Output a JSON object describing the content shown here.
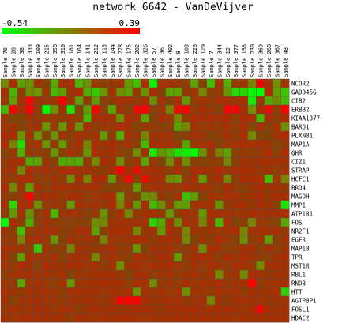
{
  "chart_data": {
    "type": "heatmap",
    "title": "network 6642 - VanDeVijver",
    "colorbar": {
      "min_label": "-0.54",
      "max_label": "0.39",
      "low_color": "#00ff00",
      "high_color": "#ff0000"
    },
    "columns": [
      "Sample 76",
      "Sample 28",
      "Sample 38",
      "Sample 333",
      "Sample 109",
      "Sample 215",
      "Sample 358",
      "Sample 310",
      "Sample 181",
      "Sample 164",
      "Sample 141",
      "Sample 212",
      "Sample 113",
      "Sample 144",
      "Sample 228",
      "Sample 175",
      "Sample 202",
      "Sample 326",
      "Sample 57",
      "Sample 36",
      "Sample 402",
      "Sample 8",
      "Sample 103",
      "Sample 226",
      "Sample 129",
      "Sample 7",
      "Sample 344",
      "Sample 12",
      "Sample 377",
      "Sample 158",
      "Sample 230",
      "Sample 369",
      "Sample 268",
      "Sample 367",
      "Sample 48"
    ],
    "rows": [
      "NCOR2",
      "GADD45G",
      "CIB2",
      "ERBB2",
      "KIAA1377",
      "BARD1",
      "PLXNB1",
      "MAP1A",
      "GHR",
      "CIZ1",
      "STRAP",
      "HCFC1",
      "BRD4",
      "MAGOH",
      "MMP1",
      "ATP1B1",
      "FOS",
      "NR2F1",
      "EGFR",
      "MAP1B",
      "TPR",
      "MST1R",
      "RBL1",
      "RND3",
      "HTT",
      "AGTPBP1",
      "FOSL1",
      "HDAC2"
    ],
    "values": [
      [
        -0.03,
        0.13,
        -0.13,
        -0.07,
        0.12,
        0.03,
        -0.17,
        0.11,
        0.14,
        -0.23,
        -0.08,
        0.08,
        0.04,
        0.07,
        0.11,
        -0.11,
        -0.25,
        0.13,
        -0.49,
        0.09,
        0.11,
        0.08,
        0.05,
        -0.14,
        0.04,
        -0.28,
        0.14,
        -0.21,
        0.06,
        0.1,
        -0.02,
        0.36,
        0.11,
        -0.06,
        0.09
      ],
      [
        0.12,
        -0.22,
        0.05,
        -0.05,
        -0.08,
        0.09,
        -0.23,
        -0.11,
        0.1,
        0.15,
        -0.18,
        -0.29,
        -0.09,
        0.11,
        -0.06,
        -0.13,
        0.08,
        -0.08,
        0.14,
        0.03,
        -0.14,
        -0.13,
        0.06,
        0.11,
        -0.02,
        0.05,
        0.08,
        -0.08,
        -0.38,
        -0.36,
        -0.5,
        -0.54,
        0.16,
        -0.12,
        -0.29
      ],
      [
        0.07,
        -0.12,
        0.1,
        0.33,
        0.1,
        0.09,
        0.1,
        0.36,
        0.1,
        -0.12,
        0.04,
        -0.11,
        0.05,
        0.07,
        0.13,
        0.12,
        0.06,
        0.12,
        -0.05,
        0.11,
        0.03,
        0.13,
        -0.11,
        0.08,
        0.11,
        0.08,
        0.13,
        0.13,
        0.09,
        0.14,
        -0.47,
        0.08,
        -0.17,
        -0.04,
        -0.25
      ],
      [
        -0.23,
        0.35,
        0.12,
        0.36,
        0.08,
        -0.52,
        -0.07,
        0.11,
        -0.42,
        0.03,
        -0.13,
        0.35,
        0.06,
        -0.17,
        0.11,
        0.03,
        0.33,
        0.39,
        0.05,
        0.09,
        -0.02,
        0.32,
        0.35,
        0.06,
        0.14,
        0.09,
        0.02,
        0.34,
        0.36,
        0.13,
        -0.07,
        0.14,
        0.31,
        0.05,
        0.38
      ],
      [
        0.09,
        0.0,
        0.02,
        0.11,
        0.07,
        0.08,
        0.08,
        0.06,
        0.11,
        0.06,
        -0.23,
        0.13,
        0.13,
        0.12,
        -0.05,
        0.15,
        0.1,
        -0.14,
        0.02,
        0.14,
        0.09,
        -0.02,
        0.04,
        0.15,
        0.12,
        0.14,
        0.12,
        0.15,
        0.04,
        0.14,
        0.13,
        -0.23,
        0.12,
        0.05,
        0.14
      ],
      [
        0.08,
        0.11,
        0.01,
        0.08,
        0.12,
        -0.09,
        0.08,
        -0.09,
        0.11,
        -0.09,
        0.13,
        0.03,
        0.09,
        0.08,
        0.14,
        0.12,
        0.01,
        0.07,
        0.08,
        0.03,
        0.04,
        -0.15,
        -0.03,
        0.12,
        0.08,
        0.1,
        0.06,
        0.12,
        0.06,
        0.13,
        0.0,
        0.12,
        0.02,
        0.12,
        -0.06
      ],
      [
        0.14,
        0.13,
        -0.08,
        0.11,
        -0.08,
        0.03,
        -0.07,
        0.1,
        0.04,
        0.13,
        0.1,
        0.11,
        -0.11,
        0.08,
        -0.21,
        0.14,
        0.07,
        -0.02,
        0.1,
        0.12,
        0.09,
        0.01,
        0.05,
        0.12,
        0.1,
        0.02,
        0.06,
        0.13,
        0.06,
        0.13,
        -0.04,
        0.01,
        0.02,
        0.12,
        0.15
      ],
      [
        0.14,
        -0.01,
        -0.4,
        0.09,
        0.13,
        -0.07,
        0.06,
        -0.11,
        0.06,
        0.13,
        -0.01,
        0.13,
        0.1,
        0.15,
        0.06,
        0.13,
        0.03,
        -0.24,
        0.13,
        0.12,
        0.12,
        0.06,
        -0.16,
        0.09,
        0.12,
        0.14,
        0.02,
        0.09,
        0.13,
        0.14,
        0.11,
        0.13,
        0.1,
        0.02,
        0.07
      ],
      [
        0.03,
        0.08,
        -0.21,
        0.07,
        0.06,
        0.03,
        -0.09,
        0.05,
        0.13,
        0.07,
        -0.09,
        0.14,
        0.1,
        0.13,
        0.06,
        0.02,
        -0.05,
        0.11,
        -0.47,
        -0.09,
        -0.19,
        -0.41,
        -0.46,
        -0.53,
        -0.07,
        0.07,
        -0.01,
        -0.14,
        0.03,
        0.07,
        0.06,
        0.08,
        0.15,
        0.02,
        0.14
      ],
      [
        0.06,
        0.13,
        0.13,
        -0.18,
        -0.14,
        0.1,
        0.04,
        -0.19,
        -0.15,
        -0.2,
        0.06,
        -0.03,
        0.14,
        0.11,
        -0.07,
        0.05,
        0.1,
        -0.14,
        0.09,
        0.01,
        -0.06,
        0.1,
        -0.06,
        0.05,
        0.03,
        0.06,
        0.04,
        -0.02,
        0.03,
        0.11,
        0.1,
        0.13,
        0.13,
        0.11,
        0.12
      ],
      [
        0.1,
        0.12,
        -0.04,
        0.13,
        0.09,
        0.13,
        0.06,
        0.13,
        0.15,
        0.1,
        0.11,
        0.07,
        0.05,
        0.13,
        0.36,
        0.13,
        0.3,
        0.11,
        0.13,
        0.1,
        0.04,
        0.14,
        0.01,
        0.14,
        0.12,
        0.1,
        0.15,
        0.09,
        0.11,
        0.14,
        0.12,
        0.07,
        0.1,
        0.05,
        0.12
      ],
      [
        0.08,
        0.06,
        0.14,
        0.14,
        0.04,
        0.06,
        0.11,
        0.06,
        -0.04,
        0.13,
        -0.03,
        0.13,
        0.14,
        -0.11,
        0.1,
        0.33,
        0.03,
        0.32,
        0.12,
        0.13,
        -0.03,
        -0.1,
        0.06,
        0.13,
        -0.13,
        0.07,
        0.14,
        -0.04,
        0.05,
        0.14,
        0.12,
        0.15,
        -0.26,
        0.09,
        -0.01
      ],
      [
        0.14,
        -0.03,
        0.11,
        -0.11,
        0.14,
        0.05,
        0.12,
        0.13,
        0.12,
        0.1,
        0.12,
        0.13,
        0.04,
        0.03,
        0.04,
        0.06,
        -0.11,
        0.06,
        0.13,
        0.11,
        0.1,
        0.08,
        0.15,
        0.1,
        0.13,
        0.1,
        0.04,
        0.14,
        0.08,
        0.04,
        0.1,
        0.15,
        0.1,
        0.12,
        0.07
      ],
      [
        0.07,
        0.02,
        0.1,
        0.35,
        0.09,
        0.14,
        0.12,
        0.08,
        0.13,
        0.13,
        0.06,
        0.09,
        0.12,
        0.15,
        -0.11,
        0.06,
        0.02,
        -0.08,
        -0.04,
        0.07,
        0.03,
        0.12,
        -0.27,
        -0.12,
        0.03,
        0.11,
        0.09,
        0.14,
        0.13,
        0.07,
        0.11,
        0.15,
        0.07,
        0.14,
        0.11
      ],
      [
        0.13,
        -0.38,
        0.14,
        0.15,
        -0.06,
        0.06,
        0.09,
        0.07,
        -0.12,
        0.13,
        0.09,
        0.13,
        0.06,
        0.15,
        -0.02,
        0.11,
        -0.1,
        0.12,
        -0.25,
        -0.06,
        0.08,
        -0.1,
        -0.13,
        0.11,
        0.13,
        0.11,
        -0.08,
        0.06,
        0.12,
        0.13,
        0.07,
        0.13,
        0.11,
        0.02,
        -0.43
      ],
      [
        0.06,
        -0.1,
        0.13,
        -0.07,
        0.03,
        0.12,
        -0.23,
        0.08,
        0.12,
        0.11,
        0.04,
        0.08,
        -0.07,
        0.06,
        0.13,
        -0.02,
        0.07,
        0.11,
        0.11,
        0.06,
        -0.1,
        0.03,
        0.12,
        0.1,
        -0.11,
        0.13,
        0.13,
        0.11,
        0.09,
        0.1,
        0.14,
        0.13,
        0.11,
        0.12,
        0.15
      ],
      [
        -0.54,
        0.13,
        0.06,
        -0.18,
        0.03,
        0.11,
        0.06,
        0.04,
        0.04,
        0.05,
        0.03,
        -0.05,
        -0.03,
        0.1,
        0.13,
        0.11,
        0.11,
        0.11,
        -0.35,
        -0.17,
        0.12,
        -0.05,
        0.13,
        0.13,
        -0.02,
        0.11,
        -0.23,
        0.14,
        0.01,
        0.05,
        -0.01,
        0.09,
        0.06,
        0.01,
        -0.16
      ],
      [
        0.11,
        0.04,
        -0.26,
        0.06,
        0.09,
        0.12,
        0.13,
        0.05,
        0.07,
        0.13,
        0.13,
        -0.12,
        0.03,
        0.12,
        0.14,
        0.12,
        -0.02,
        0.07,
        0.11,
        -0.1,
        0.14,
        0.07,
        -0.02,
        0.12,
        0.07,
        0.11,
        0.08,
        0.11,
        0.15,
        -0.02,
        0.11,
        0.13,
        0.11,
        0.14,
        0.06
      ],
      [
        0.06,
        0.08,
        -0.01,
        0.11,
        0.14,
        0.09,
        -0.08,
        0.04,
        0.13,
        0.08,
        0.12,
        0.07,
        -0.01,
        0.11,
        0.09,
        0.11,
        0.14,
        0.13,
        0.07,
        0.13,
        0.13,
        0.11,
        -0.04,
        0.02,
        0.11,
        0.05,
        0.15,
        0.09,
        0.04,
        -0.06,
        0.05,
        0.13,
        -0.12,
        0.03,
        0.11
      ],
      [
        0.13,
        0.11,
        0.09,
        0.05,
        -0.32,
        0.12,
        0.01,
        0.07,
        -0.01,
        0.13,
        0.1,
        0.07,
        0.11,
        0.14,
        0.07,
        0.09,
        -0.08,
        0.01,
        0.13,
        0.1,
        0.13,
        0.06,
        0.05,
        0.12,
        -0.05,
        0.14,
        0.11,
        0.04,
        0.08,
        0.11,
        0.13,
        0.04,
        0.12,
        0.06,
        0.1
      ],
      [
        0.11,
        0.01,
        -0.13,
        0.12,
        0.09,
        0.08,
        0.13,
        0.03,
        0.1,
        0.12,
        0.1,
        -0.02,
        0.06,
        0.13,
        0.08,
        0.03,
        0.14,
        0.1,
        0.07,
        0.14,
        0.12,
        -0.11,
        0.08,
        0.12,
        0.15,
        0.11,
        0.05,
        0.14,
        0.09,
        0.13,
        0.1,
        0.06,
        0.04,
        0.11,
        0.13
      ],
      [
        0.12,
        0.06,
        0.15,
        0.1,
        0.01,
        0.14,
        0.11,
        0.07,
        0.13,
        0.12,
        0.09,
        0.13,
        0.05,
        0.12,
        -0.06,
        0.1,
        0.13,
        0.08,
        0.12,
        0.11,
        0.12,
        0.09,
        0.05,
        0.11,
        0.08,
        0.13,
        0.11,
        0.06,
        0.14,
        0.12,
        0.08,
        -0.05,
        0.11,
        0.13,
        0.1
      ],
      [
        0.05,
        0.1,
        0.12,
        0.13,
        0.08,
        0.11,
        0.09,
        0.13,
        0.01,
        0.11,
        0.09,
        0.12,
        0.13,
        0.13,
        0.09,
        0.02,
        0.12,
        0.13,
        0.06,
        0.1,
        0.12,
        0.06,
        0.11,
        0.13,
        0.07,
        0.11,
        -0.04,
        0.09,
        0.11,
        -0.04,
        0.13,
        0.11,
        0.06,
        0.12,
        0.11
      ],
      [
        0.1,
        0.06,
        -0.17,
        0.09,
        0.12,
        0.08,
        0.05,
        0.12,
        -0.1,
        0.09,
        0.12,
        0.11,
        0.14,
        0.11,
        0.12,
        0.05,
        0.13,
        0.12,
        -0.03,
        0.06,
        0.1,
        0.06,
        0.12,
        0.09,
        0.13,
        0.1,
        0.13,
        0.08,
        0.11,
        0.13,
        0.38,
        0.05,
        0.11,
        0.1,
        0.13
      ],
      [
        0.13,
        0.11,
        0.07,
        0.12,
        0.1,
        0.13,
        0.09,
        0.05,
        0.12,
        0.13,
        0.11,
        0.12,
        0.08,
        0.12,
        0.1,
        0.13,
        -0.08,
        0.11,
        0.09,
        0.13,
        0.08,
        0.12,
        -0.06,
        0.11,
        0.12,
        0.07,
        0.13,
        0.1,
        0.13,
        0.06,
        0.12,
        0.1,
        0.11,
        0.13,
        -0.33
      ],
      [
        0.12,
        0.02,
        0.11,
        0.12,
        0.13,
        0.09,
        0.12,
        0.06,
        0.11,
        0.1,
        0.13,
        0.1,
        0.09,
        0.13,
        0.36,
        0.37,
        0.36,
        0.12,
        0.1,
        0.11,
        0.13,
        0.12,
        0.08,
        0.1,
        0.13,
        -0.03,
        0.11,
        0.06,
        0.12,
        0.13,
        0.11,
        0.12,
        0.09,
        0.11,
        0.1
      ],
      [
        0.07,
        0.13,
        0.1,
        0.09,
        0.12,
        0.11,
        0.08,
        0.13,
        0.12,
        0.05,
        0.11,
        0.13,
        0.1,
        0.12,
        0.07,
        0.11,
        0.13,
        0.12,
        0.1,
        0.06,
        0.12,
        0.11,
        0.13,
        0.13,
        0.1,
        0.11,
        0.12,
        0.13,
        0.11,
        0.09,
        0.13,
        0.34,
        0.12,
        0.1,
        0.11
      ],
      [
        0.11,
        0.09,
        0.12,
        0.13,
        0.1,
        0.11,
        0.12,
        0.1,
        0.06,
        0.13,
        0.11,
        0.09,
        0.12,
        0.1,
        0.12,
        0.13,
        0.11,
        0.09,
        0.12,
        0.11,
        0.1,
        0.13,
        0.12,
        0.11,
        0.13,
        0.1,
        0.12,
        0.11,
        0.09,
        0.12,
        0.11,
        0.13,
        0.1,
        0.12,
        0.11
      ]
    ]
  }
}
